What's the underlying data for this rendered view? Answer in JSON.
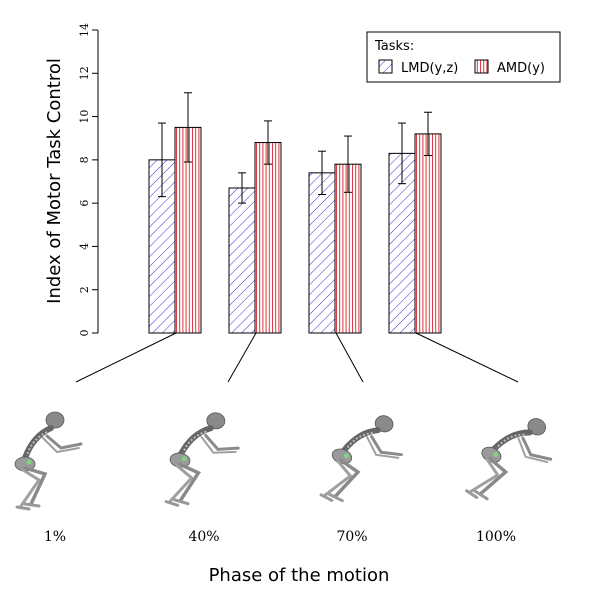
{
  "chart_data": {
    "type": "bar",
    "categories": [
      "1%",
      "40%",
      "70%",
      "100%"
    ],
    "series": [
      {
        "name": "LMD(y,z)",
        "values": [
          8.0,
          6.7,
          7.4,
          8.3
        ],
        "error": [
          1.7,
          0.7,
          1.0,
          1.4
        ],
        "color": "#3b2fd6",
        "pattern": "diagonal-hatch"
      },
      {
        "name": "AMD(y)",
        "values": [
          9.5,
          8.8,
          7.8,
          9.2
        ],
        "error": [
          1.6,
          1.0,
          1.3,
          1.0
        ],
        "color": "#d9343c",
        "pattern": "vertical-hatch"
      }
    ],
    "ylabel": "Index of Motor Task Control",
    "xlabel": "Phase of the motion",
    "ylim": [
      0,
      14
    ],
    "yticks": [
      "0",
      "2",
      "4",
      "6",
      "8",
      "10",
      "12",
      "14"
    ],
    "grid": false,
    "legend": {
      "title": "Tasks:",
      "placement": "top-right"
    },
    "illustration": "skeleton-figure"
  }
}
